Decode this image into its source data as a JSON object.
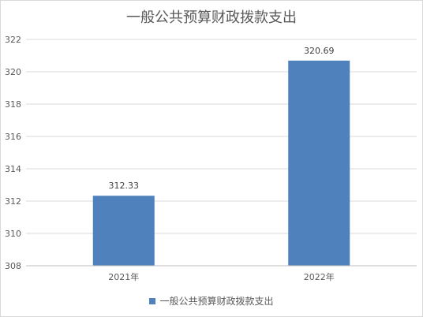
{
  "chart_data": {
    "type": "bar",
    "title": "一般公共预算财政拨款支出",
    "categories": [
      "2021年",
      "2022年"
    ],
    "series": [
      {
        "name": "一般公共预算财政拨款支出",
        "values": [
          312.33,
          320.69
        ],
        "color": "#4f81bd"
      }
    ],
    "data_labels": [
      "312.33",
      "320.69"
    ],
    "ylim": [
      308,
      322
    ],
    "yticks": [
      308,
      310,
      312,
      314,
      316,
      318,
      320,
      322
    ],
    "grid": true,
    "legend_position": "bottom"
  }
}
